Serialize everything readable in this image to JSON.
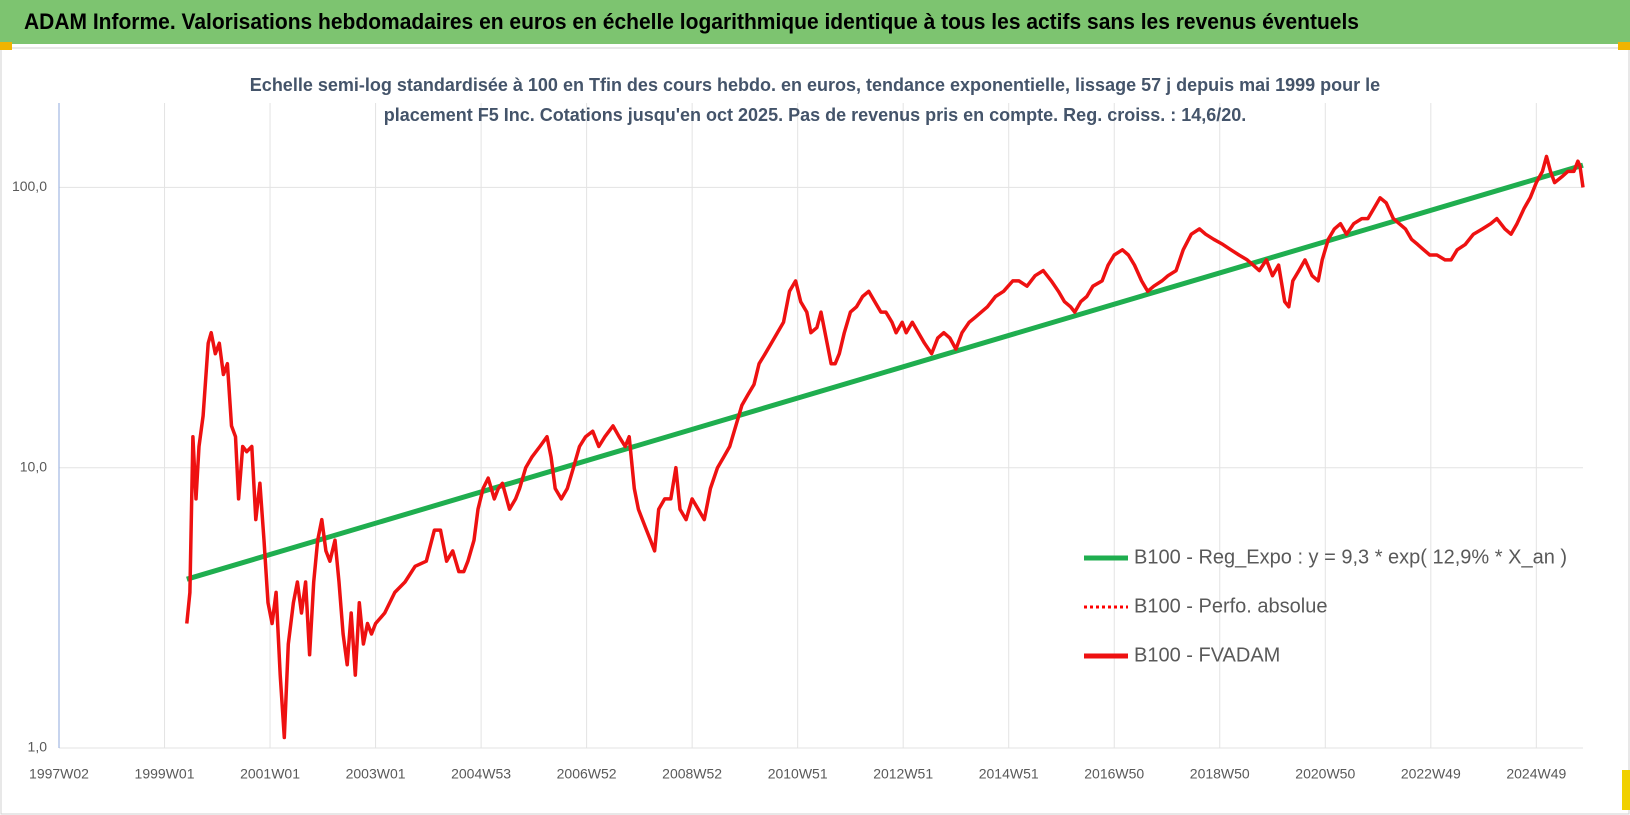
{
  "chart_data": {
    "type": "line",
    "title": "ADAM Informe. Valorisations hebdomadaires en euros en échelle logarithmique identique à tous les actifs sans les revenus éventuels",
    "subtitle": "Echelle semi-log standardisée à 100 en Tfin des cours hebdo. en euros, tendance exponentielle, lissage 57 j depuis mai 1999 pour le placement F5 Inc. Cotations jusqu'en oct 2025. Pas de revenus pris en compte. Reg. croiss. : 14,6/20.",
    "xlim": [
      0,
      1502
    ],
    "xticks": [
      {
        "value": 0,
        "label": "1997W02"
      },
      {
        "value": 104,
        "label": "1999W01"
      },
      {
        "value": 208,
        "label": "2001W01"
      },
      {
        "value": 312,
        "label": "2003W01"
      },
      {
        "value": 416,
        "label": "2004W53"
      },
      {
        "value": 520,
        "label": "2006W52"
      },
      {
        "value": 624,
        "label": "2008W52"
      },
      {
        "value": 728,
        "label": "2010W51"
      },
      {
        "value": 832,
        "label": "2012W51"
      },
      {
        "value": 936,
        "label": "2014W51"
      },
      {
        "value": 1040,
        "label": "2016W50"
      },
      {
        "value": 1144,
        "label": "2018W50"
      },
      {
        "value": 1248,
        "label": "2020W50"
      },
      {
        "value": 1352,
        "label": "2022W49"
      },
      {
        "value": 1456,
        "label": "2024W49"
      }
    ],
    "ylim": [
      1,
      200
    ],
    "ylog": true,
    "yticks": [
      {
        "value": 1,
        "label": "1,0"
      },
      {
        "value": 10,
        "label": "10,0"
      },
      {
        "value": 100,
        "label": "100,0"
      }
    ],
    "grid": true,
    "legend": "right",
    "series": [
      {
        "name": "B100 - Reg_Expo : y = 9,3 * exp( 12,9% *  X_an )",
        "color": "#1fae4f",
        "style": "solid",
        "x": [
          126,
          1502
        ],
        "values": [
          4.0,
          120
        ]
      },
      {
        "name": "B100 - Perfo. absolue",
        "color": "#ff0000",
        "style": "dotted",
        "x": [
          126,
          129,
          132,
          135,
          138,
          142,
          147,
          150,
          154,
          158,
          162,
          166,
          170,
          174,
          177,
          181,
          185,
          190,
          194,
          198,
          202,
          206,
          210,
          214,
          218,
          222,
          226,
          231,
          235,
          239,
          243,
          247,
          251,
          255,
          259,
          263,
          267,
          272,
          276,
          280,
          284,
          288,
          292,
          296,
          300,
          304,
          308,
          312,
          321,
          331,
          341,
          351,
          362,
          370,
          376,
          382,
          388,
          394,
          399,
          403,
          409,
          413,
          418,
          423,
          429,
          433,
          437,
          444,
          450,
          454,
          460,
          466,
          474,
          481,
          485,
          489,
          495,
          501,
          507,
          513,
          519,
          526,
          532,
          538,
          546,
          552,
          558,
          562,
          567,
          571,
          575,
          579,
          583,
          587,
          591,
          597,
          603,
          608,
          612,
          618,
          624,
          630,
          636,
          642,
          649,
          655,
          661,
          667,
          673,
          679,
          685,
          690,
          696,
          702,
          708,
          714,
          720,
          726,
          731,
          737,
          741,
          747,
          751,
          757,
          761,
          765,
          769,
          774,
          780,
          786,
          792,
          798,
          804,
          810,
          815,
          821,
          825,
          831,
          835,
          841,
          847,
          853,
          860,
          866,
          872,
          878,
          884,
          890,
          897,
          903,
          909,
          915,
          923,
          931,
          940,
          946,
          954,
          962,
          970,
          978,
          985,
          991,
          997,
          1001,
          1007,
          1013,
          1019,
          1028,
          1034,
          1040,
          1048,
          1054,
          1060,
          1067,
          1073,
          1079,
          1087,
          1093,
          1101,
          1108,
          1116,
          1124,
          1130,
          1138,
          1147,
          1155,
          1163,
          1171,
          1177,
          1183,
          1190,
          1196,
          1202,
          1208,
          1212,
          1216,
          1222,
          1228,
          1235,
          1241,
          1245,
          1251,
          1257,
          1263,
          1269,
          1276,
          1284,
          1290,
          1296,
          1302,
          1308,
          1315,
          1321,
          1327,
          1333,
          1339,
          1345,
          1351,
          1358,
          1366,
          1372,
          1378,
          1386,
          1394,
          1403,
          1411,
          1417,
          1425,
          1431,
          1437,
          1444,
          1450,
          1456,
          1462,
          1466,
          1470,
          1474,
          1481,
          1487,
          1493,
          1497,
          1499,
          1502
        ],
        "values": [
          2.78,
          3.59,
          12.9,
          7.74,
          11.9,
          15.3,
          27.8,
          30.3,
          25.5,
          27.8,
          21.5,
          23.5,
          14.1,
          12.9,
          7.74,
          11.9,
          11.4,
          11.9,
          6.53,
          8.8,
          5.51,
          3.3,
          2.78,
          3.59,
          1.82,
          1.09,
          2.35,
          3.3,
          3.91,
          3.03,
          3.91,
          2.15,
          3.91,
          5.51,
          6.53,
          5.05,
          4.64,
          5.51,
          3.91,
          2.55,
          1.98,
          3.03,
          1.82,
          3.3,
          2.35,
          2.78,
          2.55,
          2.78,
          3.03,
          3.59,
          3.91,
          4.45,
          4.64,
          5.99,
          5.99,
          4.64,
          5.05,
          4.26,
          4.26,
          4.64,
          5.51,
          7.11,
          8.43,
          9.18,
          7.74,
          8.43,
          8.8,
          7.11,
          7.74,
          8.43,
          10,
          10.9,
          11.9,
          12.9,
          10.9,
          8.43,
          7.74,
          8.43,
          10,
          11.9,
          12.9,
          13.5,
          11.9,
          12.9,
          14.1,
          12.9,
          11.9,
          12.9,
          8.43,
          7.11,
          6.53,
          5.99,
          5.51,
          5.05,
          7.11,
          7.74,
          7.74,
          10,
          7.11,
          6.53,
          7.74,
          7.11,
          6.53,
          8.43,
          10,
          10.9,
          11.9,
          14.1,
          16.7,
          18.2,
          19.8,
          23.5,
          25.5,
          27.8,
          30.3,
          33,
          42.6,
          46.4,
          39.1,
          35.9,
          30.3,
          31.6,
          35.9,
          27.8,
          23.5,
          23.5,
          25.5,
          30.3,
          35.9,
          37.5,
          40.8,
          42.6,
          39.1,
          35.9,
          35.9,
          33,
          30.3,
          33,
          30.3,
          33,
          30.3,
          27.8,
          25.5,
          29,
          30.3,
          29,
          26.5,
          30.3,
          33,
          34.4,
          35.9,
          37.5,
          40.8,
          42.6,
          46.4,
          46.4,
          44.4,
          48.4,
          50.5,
          46.4,
          42.6,
          39.1,
          37.5,
          35.9,
          39.1,
          40.8,
          44.4,
          46.4,
          52.8,
          57.4,
          59.9,
          57.4,
          52.8,
          46.4,
          42.6,
          44.4,
          46.4,
          48.4,
          50.5,
          59.9,
          68.1,
          71.1,
          68.1,
          65.3,
          62.6,
          59.9,
          57.4,
          55.1,
          52.8,
          50.5,
          55.1,
          48.4,
          52.8,
          39.1,
          37.5,
          46.4,
          50.5,
          55.1,
          48.4,
          46.4,
          55.1,
          65.3,
          71.1,
          74.2,
          68.1,
          74.2,
          77.4,
          77.4,
          84.3,
          91.8,
          88,
          77.4,
          74.2,
          71.1,
          65.3,
          62.6,
          59.9,
          57.4,
          57.4,
          55.1,
          55.1,
          59.9,
          62.6,
          68.1,
          71.1,
          74.2,
          77.4,
          71.1,
          68.1,
          74.2,
          84.3,
          91.8,
          104,
          114,
          129,
          114,
          104,
          109,
          114,
          114,
          124,
          119,
          100
        ]
      },
      {
        "name": "B100 - FVADAM",
        "color": "#ee1111",
        "style": "solid",
        "x": [
          126,
          129,
          132,
          135,
          138,
          142,
          147,
          150,
          154,
          158,
          162,
          166,
          170,
          174,
          177,
          181,
          185,
          190,
          194,
          198,
          202,
          206,
          210,
          214,
          218,
          222,
          226,
          231,
          235,
          239,
          243,
          247,
          251,
          255,
          259,
          263,
          267,
          272,
          276,
          280,
          284,
          288,
          292,
          296,
          300,
          304,
          308,
          312,
          321,
          331,
          341,
          351,
          362,
          370,
          376,
          382,
          388,
          394,
          399,
          403,
          409,
          413,
          418,
          423,
          429,
          433,
          437,
          444,
          450,
          454,
          460,
          466,
          474,
          481,
          485,
          489,
          495,
          501,
          507,
          513,
          519,
          526,
          532,
          538,
          546,
          552,
          558,
          562,
          567,
          571,
          575,
          579,
          583,
          587,
          591,
          597,
          603,
          608,
          612,
          618,
          624,
          630,
          636,
          642,
          649,
          655,
          661,
          667,
          673,
          679,
          685,
          690,
          696,
          702,
          708,
          714,
          720,
          726,
          731,
          737,
          741,
          747,
          751,
          757,
          761,
          765,
          769,
          774,
          780,
          786,
          792,
          798,
          804,
          810,
          815,
          821,
          825,
          831,
          835,
          841,
          847,
          853,
          860,
          866,
          872,
          878,
          884,
          890,
          897,
          903,
          909,
          915,
          923,
          931,
          940,
          946,
          954,
          962,
          970,
          978,
          985,
          991,
          997,
          1001,
          1007,
          1013,
          1019,
          1028,
          1034,
          1040,
          1048,
          1054,
          1060,
          1067,
          1073,
          1079,
          1087,
          1093,
          1101,
          1108,
          1116,
          1124,
          1130,
          1138,
          1147,
          1155,
          1163,
          1171,
          1177,
          1183,
          1190,
          1196,
          1202,
          1208,
          1212,
          1216,
          1222,
          1228,
          1235,
          1241,
          1245,
          1251,
          1257,
          1263,
          1269,
          1276,
          1284,
          1290,
          1296,
          1302,
          1308,
          1315,
          1321,
          1327,
          1333,
          1339,
          1345,
          1351,
          1358,
          1366,
          1372,
          1378,
          1386,
          1394,
          1403,
          1411,
          1417,
          1425,
          1431,
          1437,
          1444,
          1450,
          1456,
          1462,
          1466,
          1470,
          1474,
          1481,
          1487,
          1493,
          1497,
          1499,
          1502
        ],
        "values": [
          2.78,
          3.59,
          12.9,
          7.74,
          11.9,
          15.3,
          27.8,
          30.3,
          25.5,
          27.8,
          21.5,
          23.5,
          14.1,
          12.9,
          7.74,
          11.9,
          11.4,
          11.9,
          6.53,
          8.8,
          5.51,
          3.3,
          2.78,
          3.59,
          1.82,
          1.09,
          2.35,
          3.3,
          3.91,
          3.03,
          3.91,
          2.15,
          3.91,
          5.51,
          6.53,
          5.05,
          4.64,
          5.51,
          3.91,
          2.55,
          1.98,
          3.03,
          1.82,
          3.3,
          2.35,
          2.78,
          2.55,
          2.78,
          3.03,
          3.59,
          3.91,
          4.45,
          4.64,
          5.99,
          5.99,
          4.64,
          5.05,
          4.26,
          4.26,
          4.64,
          5.51,
          7.11,
          8.43,
          9.18,
          7.74,
          8.43,
          8.8,
          7.11,
          7.74,
          8.43,
          10,
          10.9,
          11.9,
          12.9,
          10.9,
          8.43,
          7.74,
          8.43,
          10,
          11.9,
          12.9,
          13.5,
          11.9,
          12.9,
          14.1,
          12.9,
          11.9,
          12.9,
          8.43,
          7.11,
          6.53,
          5.99,
          5.51,
          5.05,
          7.11,
          7.74,
          7.74,
          10,
          7.11,
          6.53,
          7.74,
          7.11,
          6.53,
          8.43,
          10,
          10.9,
          11.9,
          14.1,
          16.7,
          18.2,
          19.8,
          23.5,
          25.5,
          27.8,
          30.3,
          33,
          42.6,
          46.4,
          39.1,
          35.9,
          30.3,
          31.6,
          35.9,
          27.8,
          23.5,
          23.5,
          25.5,
          30.3,
          35.9,
          37.5,
          40.8,
          42.6,
          39.1,
          35.9,
          35.9,
          33,
          30.3,
          33,
          30.3,
          33,
          30.3,
          27.8,
          25.5,
          29,
          30.3,
          29,
          26.5,
          30.3,
          33,
          34.4,
          35.9,
          37.5,
          40.8,
          42.6,
          46.4,
          46.4,
          44.4,
          48.4,
          50.5,
          46.4,
          42.6,
          39.1,
          37.5,
          35.9,
          39.1,
          40.8,
          44.4,
          46.4,
          52.8,
          57.4,
          59.9,
          57.4,
          52.8,
          46.4,
          42.6,
          44.4,
          46.4,
          48.4,
          50.5,
          59.9,
          68.1,
          71.1,
          68.1,
          65.3,
          62.6,
          59.9,
          57.4,
          55.1,
          52.8,
          50.5,
          55.1,
          48.4,
          52.8,
          39.1,
          37.5,
          46.4,
          50.5,
          55.1,
          48.4,
          46.4,
          55.1,
          65.3,
          71.1,
          74.2,
          68.1,
          74.2,
          77.4,
          77.4,
          84.3,
          91.8,
          88,
          77.4,
          74.2,
          71.1,
          65.3,
          62.6,
          59.9,
          57.4,
          57.4,
          55.1,
          55.1,
          59.9,
          62.6,
          68.1,
          71.1,
          74.2,
          77.4,
          71.1,
          68.1,
          74.2,
          84.3,
          91.8,
          104,
          114,
          129,
          114,
          104,
          109,
          114,
          114,
          124,
          119,
          100
        ]
      }
    ]
  }
}
